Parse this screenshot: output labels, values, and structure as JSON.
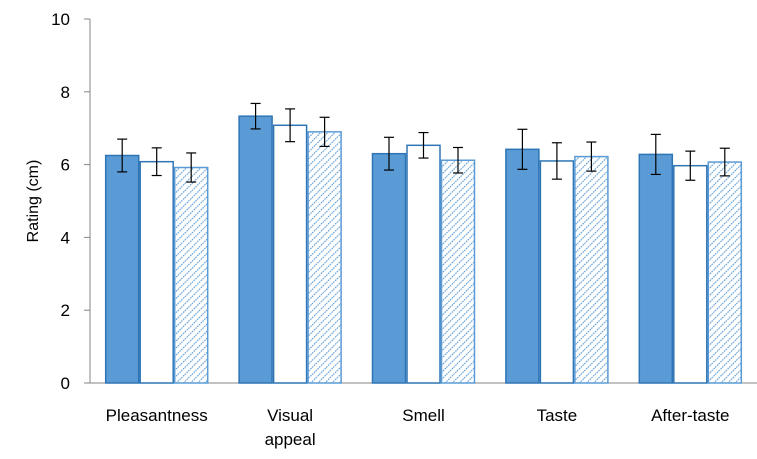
{
  "chart_data": {
    "type": "bar",
    "title": "",
    "xlabel": "",
    "ylabel": "Rating (cm)",
    "ylim": [
      0,
      10
    ],
    "yticks": [
      "0",
      "2",
      "4",
      "6",
      "8",
      "10"
    ],
    "categories": [
      [
        "Pleasantness"
      ],
      [
        "Visual",
        "appeal"
      ],
      [
        "Smell"
      ],
      [
        "Taste"
      ],
      [
        "After-taste"
      ]
    ],
    "series": [
      {
        "style": "solid",
        "color": "#5b9bd5",
        "values": [
          6.25,
          7.33,
          6.3,
          6.42,
          6.28
        ],
        "error": [
          0.45,
          0.35,
          0.45,
          0.55,
          0.55
        ]
      },
      {
        "style": "outline",
        "color": "#2e75b6",
        "values": [
          6.08,
          7.08,
          6.53,
          6.1,
          5.97
        ],
        "error": [
          0.38,
          0.45,
          0.35,
          0.5,
          0.4
        ]
      },
      {
        "style": "hatched",
        "color": "#5b9bd5",
        "values": [
          5.92,
          6.9,
          6.12,
          6.22,
          6.07
        ],
        "error": [
          0.4,
          0.4,
          0.35,
          0.4,
          0.38
        ]
      }
    ],
    "grid": false,
    "legend": "none"
  }
}
